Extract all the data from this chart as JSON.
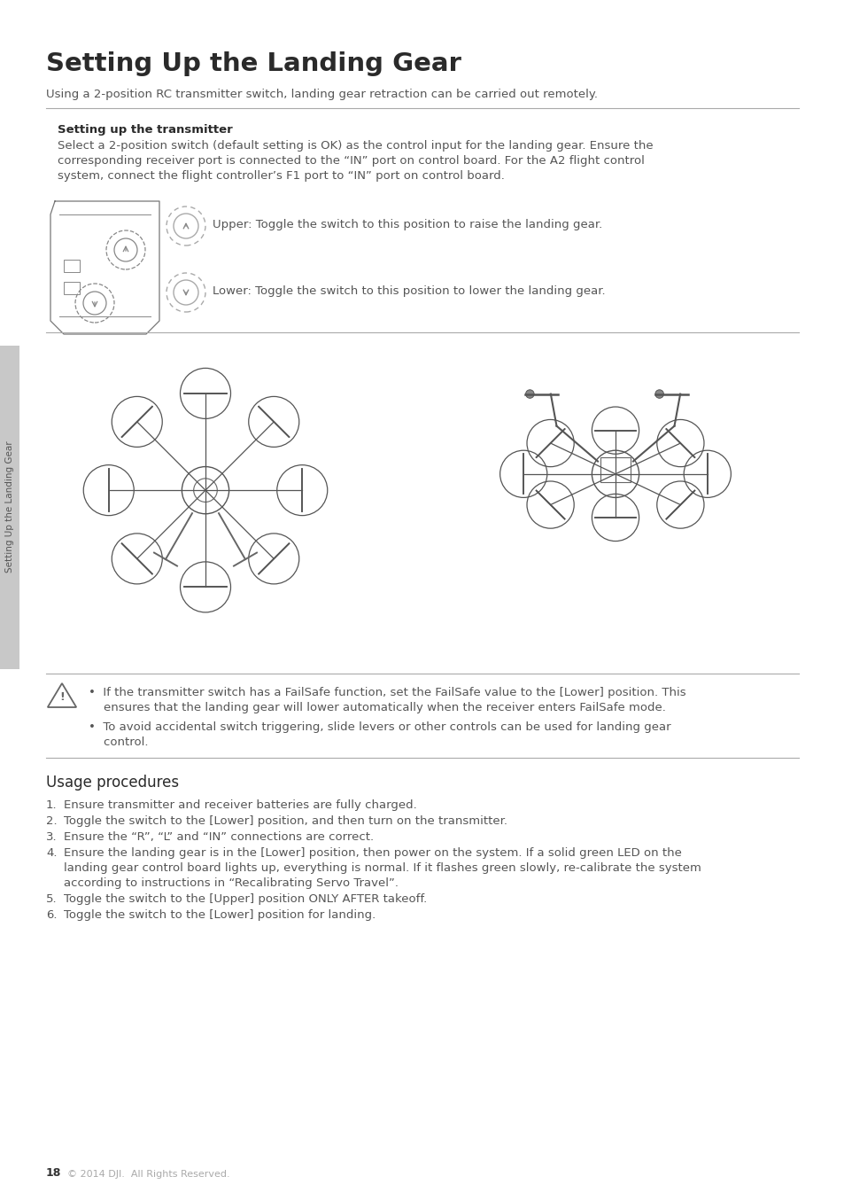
{
  "title": "Setting Up the Landing Gear",
  "subtitle": "Using a 2-position RC transmitter switch, landing gear retraction can be carried out remotely.",
  "section1_heading": "Setting up the transmitter",
  "section1_body_lines": [
    "Select a 2-position switch (default setting is OK) as the control input for the landing gear. Ensure the",
    "corresponding receiver port is connected to the “IN” port on control board. For the A2 flight control",
    "system, connect the flight controller’s F1 port to “IN” port on control board."
  ],
  "upper_label": "Upper: Toggle the switch to this position to raise the landing gear.",
  "lower_label": "Lower: Toggle the switch to this position to lower the landing gear.",
  "warning_text1_lines": [
    "If the transmitter switch has a FailSafe function, set the FailSafe value to the [Lower] position. This",
    "ensures that the landing gear will lower automatically when the receiver enters FailSafe mode."
  ],
  "warning_text2_lines": [
    "To avoid accidental switch triggering, slide levers or other controls can be used for landing gear",
    "control."
  ],
  "section2_heading": "Usage procedures",
  "steps": [
    [
      "Ensure transmitter and receiver batteries are fully charged."
    ],
    [
      "Toggle the switch to the [Lower] position, and then turn on the transmitter."
    ],
    [
      "Ensure the “R”, “L” and “IN” connections are correct."
    ],
    [
      "Ensure the landing gear is in the [Lower] position, then power on the system. If a solid green LED on the",
      "landing gear control board lights up, everything is normal. If it flashes green slowly, re-calibrate the system",
      "according to instructions in “Recalibrating Servo Travel”."
    ],
    [
      "Toggle the switch to the [Upper] position ONLY AFTER takeoff."
    ],
    [
      "Toggle the switch to the [Lower] position for landing."
    ]
  ],
  "sidebar_text": "Setting Up the Landing Gear",
  "footer_page": "18",
  "footer_copy": "© 2014 DJI.  All Rights Reserved.",
  "bg_color": "#ffffff",
  "text_color": "#555555",
  "title_color": "#333333",
  "heading_color": "#333333",
  "line_color": "#aaaaaa",
  "sidebar_bg": "#c8c8c8"
}
